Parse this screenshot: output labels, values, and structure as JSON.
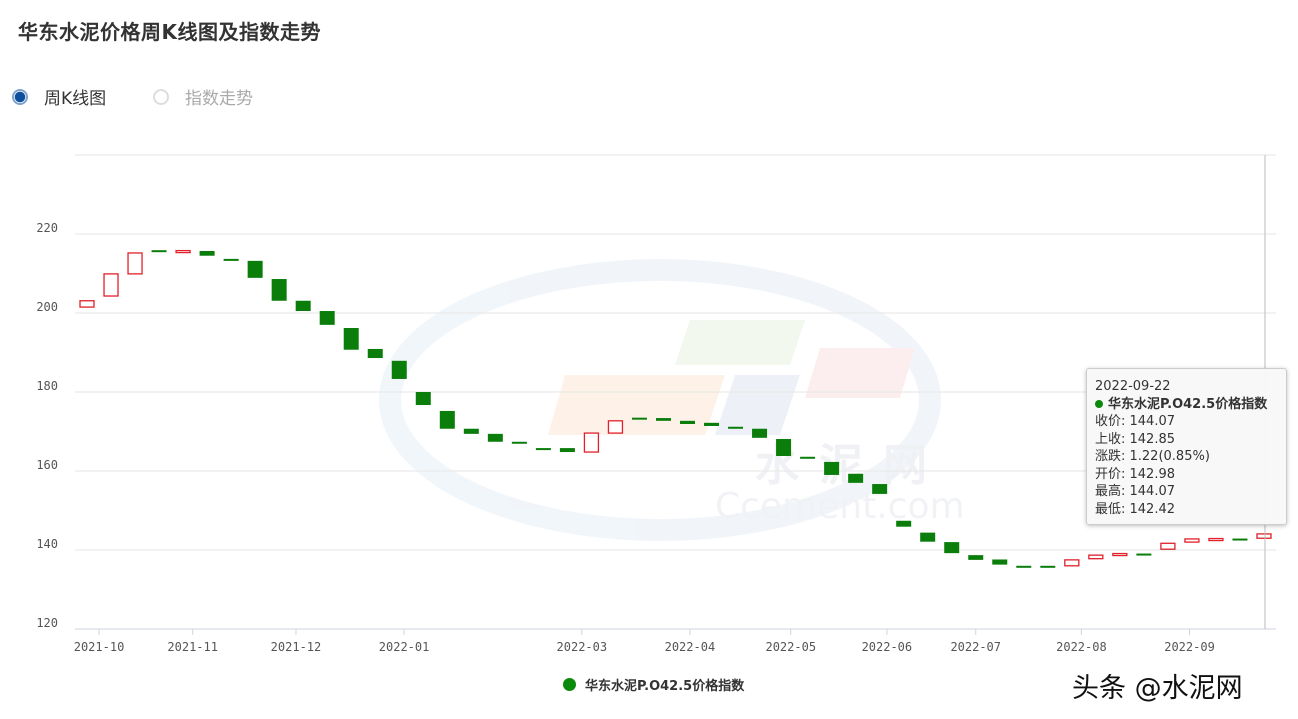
{
  "title": "华东水泥价格周K线图及指数走势",
  "radios": [
    {
      "label": "周K线图",
      "selected": true
    },
    {
      "label": "指数走势",
      "selected": false
    }
  ],
  "colors": {
    "up": "#e0202a",
    "down": "#0a7d0a",
    "accent": "#0d4f9c"
  },
  "watermark": {
    "logo_text": "水泥网 Ccement.com",
    "corner_text": "头条 @水泥网"
  },
  "legend": {
    "label": "华东水泥P.O42.5价格指数"
  },
  "tooltip": {
    "date": "2022-09-22",
    "series": "华东水泥P.O42.5价格指数",
    "rows": [
      "收价: 144.07",
      "上收: 142.85",
      "涨跌: 1.22(0.85%)",
      "开价: 142.98",
      "最高: 144.07",
      "最低: 142.42"
    ]
  },
  "chart_data": {
    "type": "candlestick",
    "title": "华东水泥价格周K线图及指数走势",
    "series_name": "华东水泥P.O42.5价格指数",
    "ylim": [
      120,
      240
    ],
    "yticks": [
      120,
      140,
      160,
      180,
      200,
      220
    ],
    "xtick_labels": [
      "2021-10",
      "2021-11",
      "2021-12",
      "2022-01",
      "2022-03",
      "2022-04",
      "2022-05",
      "2022-06",
      "2022-07",
      "2022-08",
      "2022-09"
    ],
    "grid": true,
    "legend_position": "bottom",
    "open": [
      201.5,
      204.3,
      209.9,
      215.9,
      215.5,
      215.7,
      213.7,
      213.2,
      208.6,
      203.1,
      200.5,
      196.2,
      190.9,
      187.9,
      180.0,
      175.2,
      170.7,
      169.4,
      167.4,
      165.8,
      165.8,
      164.8,
      169.6,
      173.5,
      173.4,
      172.7,
      172.2,
      171.2,
      170.7,
      168.1,
      163.6,
      162.3,
      159.3,
      156.7,
      147.4,
      144.4,
      142.0,
      138.7,
      137.6,
      136.0,
      136.0,
      136.0,
      137.8,
      138.9,
      139.1,
      140.2,
      142.0,
      142.7,
      142.9,
      142.98
    ],
    "close": [
      203.1,
      209.9,
      215.2,
      215.5,
      215.8,
      214.5,
      213.3,
      208.9,
      203.1,
      200.5,
      197.0,
      190.7,
      188.6,
      183.3,
      176.7,
      170.7,
      169.4,
      167.4,
      167.2,
      165.6,
      164.8,
      169.6,
      172.7,
      173.3,
      172.7,
      171.9,
      171.4,
      171.1,
      168.4,
      163.8,
      163.5,
      159.0,
      157.0,
      154.2,
      145.9,
      142.1,
      139.2,
      137.5,
      136.3,
      135.9,
      135.9,
      137.5,
      138.7,
      139.1,
      138.9,
      141.7,
      142.8,
      142.9,
      142.85,
      144.07
    ]
  }
}
